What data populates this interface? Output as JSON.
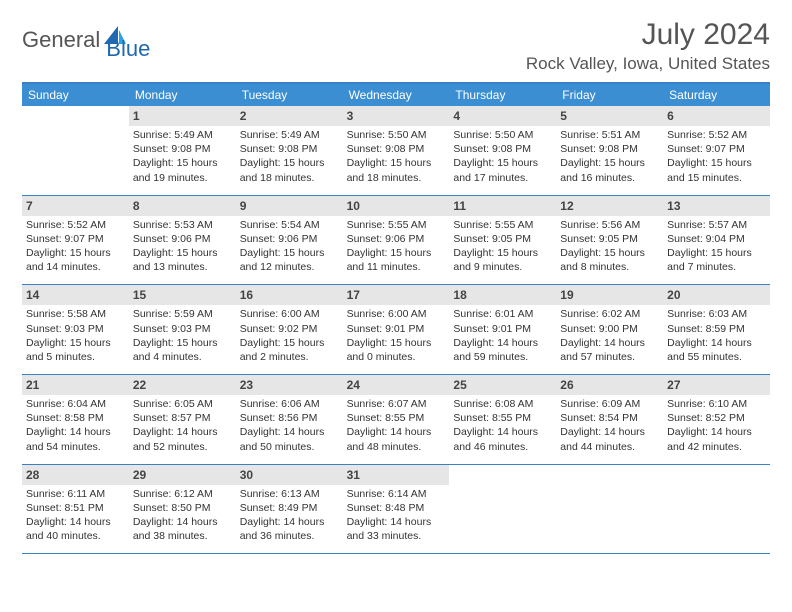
{
  "logo": {
    "text1": "General",
    "text2": "Blue"
  },
  "title": "July 2024",
  "location": "Rock Valley, Iowa, United States",
  "colors": {
    "headerBar": "#3b8ed1",
    "ruleLine": "#3b7fc4",
    "dayNumBg": "#e6e6e6",
    "logoBlue": "#2068b0"
  },
  "dayNames": [
    "Sunday",
    "Monday",
    "Tuesday",
    "Wednesday",
    "Thursday",
    "Friday",
    "Saturday"
  ],
  "weeks": [
    [
      null,
      {
        "n": "1",
        "sr": "Sunrise: 5:49 AM",
        "ss": "Sunset: 9:08 PM",
        "d1": "Daylight: 15 hours",
        "d2": "and 19 minutes."
      },
      {
        "n": "2",
        "sr": "Sunrise: 5:49 AM",
        "ss": "Sunset: 9:08 PM",
        "d1": "Daylight: 15 hours",
        "d2": "and 18 minutes."
      },
      {
        "n": "3",
        "sr": "Sunrise: 5:50 AM",
        "ss": "Sunset: 9:08 PM",
        "d1": "Daylight: 15 hours",
        "d2": "and 18 minutes."
      },
      {
        "n": "4",
        "sr": "Sunrise: 5:50 AM",
        "ss": "Sunset: 9:08 PM",
        "d1": "Daylight: 15 hours",
        "d2": "and 17 minutes."
      },
      {
        "n": "5",
        "sr": "Sunrise: 5:51 AM",
        "ss": "Sunset: 9:08 PM",
        "d1": "Daylight: 15 hours",
        "d2": "and 16 minutes."
      },
      {
        "n": "6",
        "sr": "Sunrise: 5:52 AM",
        "ss": "Sunset: 9:07 PM",
        "d1": "Daylight: 15 hours",
        "d2": "and 15 minutes."
      }
    ],
    [
      {
        "n": "7",
        "sr": "Sunrise: 5:52 AM",
        "ss": "Sunset: 9:07 PM",
        "d1": "Daylight: 15 hours",
        "d2": "and 14 minutes."
      },
      {
        "n": "8",
        "sr": "Sunrise: 5:53 AM",
        "ss": "Sunset: 9:06 PM",
        "d1": "Daylight: 15 hours",
        "d2": "and 13 minutes."
      },
      {
        "n": "9",
        "sr": "Sunrise: 5:54 AM",
        "ss": "Sunset: 9:06 PM",
        "d1": "Daylight: 15 hours",
        "d2": "and 12 minutes."
      },
      {
        "n": "10",
        "sr": "Sunrise: 5:55 AM",
        "ss": "Sunset: 9:06 PM",
        "d1": "Daylight: 15 hours",
        "d2": "and 11 minutes."
      },
      {
        "n": "11",
        "sr": "Sunrise: 5:55 AM",
        "ss": "Sunset: 9:05 PM",
        "d1": "Daylight: 15 hours",
        "d2": "and 9 minutes."
      },
      {
        "n": "12",
        "sr": "Sunrise: 5:56 AM",
        "ss": "Sunset: 9:05 PM",
        "d1": "Daylight: 15 hours",
        "d2": "and 8 minutes."
      },
      {
        "n": "13",
        "sr": "Sunrise: 5:57 AM",
        "ss": "Sunset: 9:04 PM",
        "d1": "Daylight: 15 hours",
        "d2": "and 7 minutes."
      }
    ],
    [
      {
        "n": "14",
        "sr": "Sunrise: 5:58 AM",
        "ss": "Sunset: 9:03 PM",
        "d1": "Daylight: 15 hours",
        "d2": "and 5 minutes."
      },
      {
        "n": "15",
        "sr": "Sunrise: 5:59 AM",
        "ss": "Sunset: 9:03 PM",
        "d1": "Daylight: 15 hours",
        "d2": "and 4 minutes."
      },
      {
        "n": "16",
        "sr": "Sunrise: 6:00 AM",
        "ss": "Sunset: 9:02 PM",
        "d1": "Daylight: 15 hours",
        "d2": "and 2 minutes."
      },
      {
        "n": "17",
        "sr": "Sunrise: 6:00 AM",
        "ss": "Sunset: 9:01 PM",
        "d1": "Daylight: 15 hours",
        "d2": "and 0 minutes."
      },
      {
        "n": "18",
        "sr": "Sunrise: 6:01 AM",
        "ss": "Sunset: 9:01 PM",
        "d1": "Daylight: 14 hours",
        "d2": "and 59 minutes."
      },
      {
        "n": "19",
        "sr": "Sunrise: 6:02 AM",
        "ss": "Sunset: 9:00 PM",
        "d1": "Daylight: 14 hours",
        "d2": "and 57 minutes."
      },
      {
        "n": "20",
        "sr": "Sunrise: 6:03 AM",
        "ss": "Sunset: 8:59 PM",
        "d1": "Daylight: 14 hours",
        "d2": "and 55 minutes."
      }
    ],
    [
      {
        "n": "21",
        "sr": "Sunrise: 6:04 AM",
        "ss": "Sunset: 8:58 PM",
        "d1": "Daylight: 14 hours",
        "d2": "and 54 minutes."
      },
      {
        "n": "22",
        "sr": "Sunrise: 6:05 AM",
        "ss": "Sunset: 8:57 PM",
        "d1": "Daylight: 14 hours",
        "d2": "and 52 minutes."
      },
      {
        "n": "23",
        "sr": "Sunrise: 6:06 AM",
        "ss": "Sunset: 8:56 PM",
        "d1": "Daylight: 14 hours",
        "d2": "and 50 minutes."
      },
      {
        "n": "24",
        "sr": "Sunrise: 6:07 AM",
        "ss": "Sunset: 8:55 PM",
        "d1": "Daylight: 14 hours",
        "d2": "and 48 minutes."
      },
      {
        "n": "25",
        "sr": "Sunrise: 6:08 AM",
        "ss": "Sunset: 8:55 PM",
        "d1": "Daylight: 14 hours",
        "d2": "and 46 minutes."
      },
      {
        "n": "26",
        "sr": "Sunrise: 6:09 AM",
        "ss": "Sunset: 8:54 PM",
        "d1": "Daylight: 14 hours",
        "d2": "and 44 minutes."
      },
      {
        "n": "27",
        "sr": "Sunrise: 6:10 AM",
        "ss": "Sunset: 8:52 PM",
        "d1": "Daylight: 14 hours",
        "d2": "and 42 minutes."
      }
    ],
    [
      {
        "n": "28",
        "sr": "Sunrise: 6:11 AM",
        "ss": "Sunset: 8:51 PM",
        "d1": "Daylight: 14 hours",
        "d2": "and 40 minutes."
      },
      {
        "n": "29",
        "sr": "Sunrise: 6:12 AM",
        "ss": "Sunset: 8:50 PM",
        "d1": "Daylight: 14 hours",
        "d2": "and 38 minutes."
      },
      {
        "n": "30",
        "sr": "Sunrise: 6:13 AM",
        "ss": "Sunset: 8:49 PM",
        "d1": "Daylight: 14 hours",
        "d2": "and 36 minutes."
      },
      {
        "n": "31",
        "sr": "Sunrise: 6:14 AM",
        "ss": "Sunset: 8:48 PM",
        "d1": "Daylight: 14 hours",
        "d2": "and 33 minutes."
      },
      null,
      null,
      null
    ]
  ]
}
